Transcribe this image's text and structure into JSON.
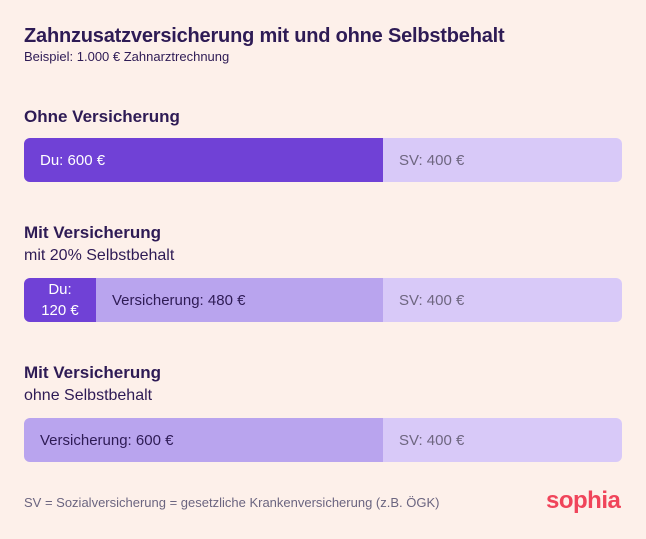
{
  "header": {
    "title": "Zahnzusatzversicherung mit und ohne Selbstbehalt",
    "subtitle": "Beispiel: 1.000 € Zahnarztrechnung"
  },
  "colors": {
    "du": "#7041d6",
    "versicherung": "#b9a4ee",
    "sv": "#d8c9f8",
    "text_dark": "#2e1b55",
    "text_sv": "#6e6680",
    "brand": "#f0445a",
    "background": "#fdf0ea"
  },
  "chart_data": {
    "type": "bar",
    "orientation": "horizontal",
    "stacked": true,
    "total": 1000,
    "unit": "€",
    "categories": [
      "Ohne Versicherung",
      "Mit Versicherung mit 20% Selbstbehalt",
      "Mit Versicherung ohne Selbstbehalt"
    ],
    "series": [
      {
        "key": "du",
        "name": "Du",
        "values": [
          600,
          120,
          0
        ]
      },
      {
        "key": "versicherung",
        "name": "Versicherung",
        "values": [
          0,
          480,
          600
        ]
      },
      {
        "key": "sv",
        "name": "SV",
        "values": [
          400,
          400,
          400
        ]
      }
    ],
    "groups": [
      {
        "title": "Ohne Versicherung",
        "subtitle": "",
        "segments": [
          {
            "key": "du",
            "value": 600,
            "label": "Du: 600 €",
            "align": "left",
            "text_color": "#ffffff"
          },
          {
            "key": "sv",
            "value": 400,
            "label": "SV: 400 €",
            "align": "left",
            "text_color": "#6e6680"
          }
        ]
      },
      {
        "title": "Mit Versicherung",
        "subtitle": "mit 20% Selbstbehalt",
        "segments": [
          {
            "key": "du",
            "value": 120,
            "label_lines": [
              "Du:",
              "120 €"
            ],
            "align": "center",
            "text_color": "#ffffff"
          },
          {
            "key": "versicherung",
            "value": 480,
            "label": "Versicherung: 480 €",
            "align": "left",
            "text_color": "#2e1b55"
          },
          {
            "key": "sv",
            "value": 400,
            "label": "SV: 400 €",
            "align": "left",
            "text_color": "#6e6680"
          }
        ]
      },
      {
        "title": "Mit Versicherung",
        "subtitle": "ohne Selbstbehalt",
        "segments": [
          {
            "key": "versicherung",
            "value": 600,
            "label": "Versicherung: 600 €",
            "align": "left",
            "text_color": "#2e1b55"
          },
          {
            "key": "sv",
            "value": 400,
            "label": "SV: 400 €",
            "align": "left",
            "text_color": "#6e6680"
          }
        ]
      }
    ]
  },
  "footer": {
    "note": "SV = Sozialversicherung = gesetzliche Krankenversicherung (z.B. ÖGK)",
    "logo_text": "sophia"
  }
}
